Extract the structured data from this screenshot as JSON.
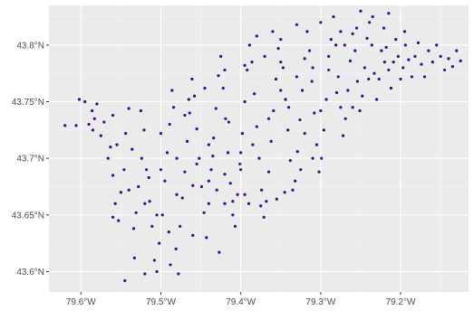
{
  "chart_data": {
    "type": "scatter",
    "title": "",
    "xlabel": "",
    "ylabel": "",
    "xlim": [
      -79.64,
      -79.115
    ],
    "ylim": [
      43.582,
      43.835
    ],
    "grid": true,
    "point_color": "#3f0a8a",
    "panel_color": "#ebebeb",
    "x_ticks": [
      {
        "value": -79.6,
        "label": "79.6°W"
      },
      {
        "value": -79.5,
        "label": "79.5°W"
      },
      {
        "value": -79.4,
        "label": "79.4°W"
      },
      {
        "value": -79.3,
        "label": "79.3°W"
      },
      {
        "value": -79.2,
        "label": "79.2°W"
      }
    ],
    "y_ticks": [
      {
        "value": 43.6,
        "label": "43.6°N"
      },
      {
        "value": 43.65,
        "label": "43.65°N"
      },
      {
        "value": 43.7,
        "label": "43.7°N"
      },
      {
        "value": 43.75,
        "label": "43.75°N"
      },
      {
        "value": 43.8,
        "label": "43.8°N"
      }
    ],
    "points": [
      [
        -79.62,
        43.729
      ],
      [
        -79.606,
        43.729
      ],
      [
        -79.602,
        43.752
      ],
      [
        -79.595,
        43.75
      ],
      [
        -79.59,
        43.73
      ],
      [
        -79.586,
        43.742
      ],
      [
        -79.583,
        43.735
      ],
      [
        -79.58,
        43.748
      ],
      [
        -79.575,
        43.72
      ],
      [
        -79.571,
        43.732
      ],
      [
        -79.566,
        43.7
      ],
      [
        -79.563,
        43.71
      ],
      [
        -79.56,
        43.685
      ],
      [
        -79.557,
        43.66
      ],
      [
        -79.553,
        43.645
      ],
      [
        -79.55,
        43.67
      ],
      [
        -79.546,
        43.69
      ],
      [
        -79.544,
        43.722
      ],
      [
        -79.54,
        43.744
      ],
      [
        -79.536,
        43.708
      ],
      [
        -79.534,
        43.638
      ],
      [
        -79.531,
        43.652
      ],
      [
        -79.528,
        43.675
      ],
      [
        -79.524,
        43.7
      ],
      [
        -79.521,
        43.725
      ],
      [
        -79.518,
        43.69
      ],
      [
        -79.514,
        43.662
      ],
      [
        -79.511,
        43.64
      ],
      [
        -79.508,
        43.61
      ],
      [
        -79.505,
        43.6
      ],
      [
        -79.502,
        43.625
      ],
      [
        -79.498,
        43.65
      ],
      [
        -79.495,
        43.68
      ],
      [
        -79.492,
        43.705
      ],
      [
        -79.489,
        43.73
      ],
      [
        -79.486,
        43.76
      ],
      [
        -79.484,
        43.745
      ],
      [
        -79.481,
        43.62
      ],
      [
        -79.478,
        43.598
      ],
      [
        -79.476,
        43.64
      ],
      [
        -79.473,
        43.665
      ],
      [
        -79.47,
        43.688
      ],
      [
        -79.467,
        43.715
      ],
      [
        -79.464,
        43.74
      ],
      [
        -79.461,
        43.77
      ],
      [
        -79.458,
        43.755
      ],
      [
        -79.455,
        43.726
      ],
      [
        -79.452,
        43.7
      ],
      [
        -79.449,
        43.675
      ],
      [
        -79.446,
        43.652
      ],
      [
        -79.443,
        43.63
      ],
      [
        -79.44,
        43.66
      ],
      [
        -79.437,
        43.69
      ],
      [
        -79.434,
        43.718
      ],
      [
        -79.431,
        43.744
      ],
      [
        -79.428,
        43.773
      ],
      [
        -79.425,
        43.79
      ],
      [
        -79.422,
        43.762
      ],
      [
        -79.419,
        43.735
      ],
      [
        -79.416,
        43.705
      ],
      [
        -79.413,
        43.678
      ],
      [
        -79.41,
        43.65
      ],
      [
        -79.407,
        43.64
      ],
      [
        -79.404,
        43.668
      ],
      [
        -79.401,
        43.695
      ],
      [
        -79.398,
        43.722
      ],
      [
        -79.395,
        43.75
      ],
      [
        -79.392,
        43.778
      ],
      [
        -79.389,
        43.8
      ],
      [
        -79.386,
        43.785
      ],
      [
        -79.383,
        43.757
      ],
      [
        -79.38,
        43.728
      ],
      [
        -79.377,
        43.7
      ],
      [
        -79.374,
        43.672
      ],
      [
        -79.371,
        43.648
      ],
      [
        -79.368,
        43.662
      ],
      [
        -79.365,
        43.688
      ],
      [
        -79.362,
        43.715
      ],
      [
        -79.359,
        43.742
      ],
      [
        -79.356,
        43.77
      ],
      [
        -79.353,
        43.797
      ],
      [
        -79.35,
        43.805
      ],
      [
        -79.347,
        43.78
      ],
      [
        -79.344,
        43.752
      ],
      [
        -79.341,
        43.725
      ],
      [
        -79.338,
        43.698
      ],
      [
        -79.335,
        43.672
      ],
      [
        -79.332,
        43.68
      ],
      [
        -79.329,
        43.706
      ],
      [
        -79.326,
        43.734
      ],
      [
        -79.323,
        43.76
      ],
      [
        -79.32,
        43.788
      ],
      [
        -79.317,
        43.812
      ],
      [
        -79.314,
        43.795
      ],
      [
        -79.311,
        43.768
      ],
      [
        -79.308,
        43.74
      ],
      [
        -79.305,
        43.712
      ],
      [
        -79.302,
        43.688
      ],
      [
        -79.299,
        43.7
      ],
      [
        -79.296,
        43.725
      ],
      [
        -79.293,
        43.752
      ],
      [
        -79.29,
        43.778
      ],
      [
        -79.287,
        43.805
      ],
      [
        -79.284,
        43.825
      ],
      [
        -79.281,
        43.8
      ],
      [
        -79.278,
        43.772
      ],
      [
        -79.275,
        43.745
      ],
      [
        -79.272,
        43.72
      ],
      [
        -79.269,
        43.735
      ],
      [
        -79.266,
        43.76
      ],
      [
        -79.263,
        43.786
      ],
      [
        -79.26,
        43.81
      ],
      [
        -79.257,
        43.795
      ],
      [
        -79.254,
        43.768
      ],
      [
        -79.251,
        43.742
      ],
      [
        -79.248,
        43.755
      ],
      [
        -79.245,
        43.78
      ],
      [
        -79.242,
        43.806
      ],
      [
        -79.239,
        43.82
      ],
      [
        -79.236,
        43.8
      ],
      [
        -79.233,
        43.775
      ],
      [
        -79.23,
        43.752
      ],
      [
        -79.227,
        43.77
      ],
      [
        -79.224,
        43.795
      ],
      [
        -79.221,
        43.815
      ],
      [
        -79.218,
        43.798
      ],
      [
        -79.215,
        43.778
      ],
      [
        -79.212,
        43.762
      ],
      [
        -79.209,
        43.785
      ],
      [
        -79.206,
        43.805
      ],
      [
        -79.203,
        43.79
      ],
      [
        -79.2,
        43.77
      ],
      [
        -79.197,
        43.78
      ],
      [
        -79.194,
        43.8
      ],
      [
        -79.19,
        43.787
      ],
      [
        -79.186,
        43.772
      ],
      [
        -79.182,
        43.79
      ],
      [
        -79.178,
        43.802
      ],
      [
        -79.174,
        43.783
      ],
      [
        -79.17,
        43.772
      ],
      [
        -79.165,
        43.795
      ],
      [
        -79.16,
        43.785
      ],
      [
        -79.155,
        43.8
      ],
      [
        -79.15,
        43.79
      ],
      [
        -79.145,
        43.778
      ],
      [
        -79.14,
        43.788
      ],
      [
        -79.135,
        43.781
      ],
      [
        -79.13,
        43.795
      ],
      [
        -79.125,
        43.786
      ],
      [
        -79.427,
        43.617
      ],
      [
        -79.545,
        43.592
      ],
      [
        -79.52,
        43.598
      ],
      [
        -79.488,
        43.606
      ],
      [
        -79.533,
        43.612
      ],
      [
        -79.46,
        43.632
      ],
      [
        -79.42,
        43.66
      ],
      [
        -79.395,
        43.668
      ],
      [
        -79.375,
        43.658
      ],
      [
        -79.355,
        43.664
      ],
      [
        -79.43,
        43.672
      ],
      [
        -79.41,
        43.662
      ],
      [
        -79.39,
        43.66
      ],
      [
        -79.345,
        43.67
      ],
      [
        -79.325,
        43.69
      ],
      [
        -79.31,
        43.7
      ],
      [
        -79.4,
        43.705
      ],
      [
        -79.415,
        43.732
      ],
      [
        -79.44,
        43.712
      ],
      [
        -79.47,
        43.738
      ],
      [
        -79.5,
        43.722
      ],
      [
        -79.525,
        43.742
      ],
      [
        -79.56,
        43.738
      ],
      [
        -79.585,
        43.725
      ],
      [
        -79.555,
        43.712
      ],
      [
        -79.515,
        43.683
      ],
      [
        -79.48,
        43.668
      ],
      [
        -79.455,
        43.695
      ],
      [
        -79.435,
        43.702
      ],
      [
        -79.385,
        43.712
      ],
      [
        -79.365,
        43.735
      ],
      [
        -79.34,
        43.745
      ],
      [
        -79.32,
        43.722
      ],
      [
        -79.3,
        43.742
      ],
      [
        -79.28,
        43.758
      ],
      [
        -79.26,
        43.745
      ],
      [
        -79.24,
        43.77
      ],
      [
        -79.22,
        43.785
      ],
      [
        -79.35,
        43.785
      ],
      [
        -79.37,
        43.79
      ],
      [
        -79.395,
        43.782
      ],
      [
        -79.42,
        43.778
      ],
      [
        -79.445,
        43.762
      ],
      [
        -79.465,
        43.752
      ],
      [
        -79.38,
        43.808
      ],
      [
        -79.36,
        43.812
      ],
      [
        -79.33,
        43.818
      ],
      [
        -79.3,
        43.82
      ],
      [
        -79.275,
        43.812
      ],
      [
        -79.25,
        43.83
      ],
      [
        -79.235,
        43.825
      ],
      [
        -79.215,
        43.828
      ],
      [
        -79.195,
        43.812
      ],
      [
        -79.35,
        43.76
      ],
      [
        -79.33,
        43.772
      ],
      [
        -79.31,
        43.78
      ],
      [
        -79.29,
        43.79
      ],
      [
        -79.27,
        43.8
      ],
      [
        -79.255,
        43.815
      ],
      [
        -79.4,
        43.69
      ],
      [
        -79.42,
        43.686
      ],
      [
        -79.44,
        43.68
      ],
      [
        -79.46,
        43.676
      ],
      [
        -79.48,
        43.7
      ],
      [
        -79.5,
        43.69
      ],
      [
        -79.52,
        43.66
      ],
      [
        -79.54,
        43.672
      ],
      [
        -79.56,
        43.648
      ],
      [
        -79.505,
        43.65
      ],
      [
        -79.49,
        43.635
      ]
    ]
  }
}
